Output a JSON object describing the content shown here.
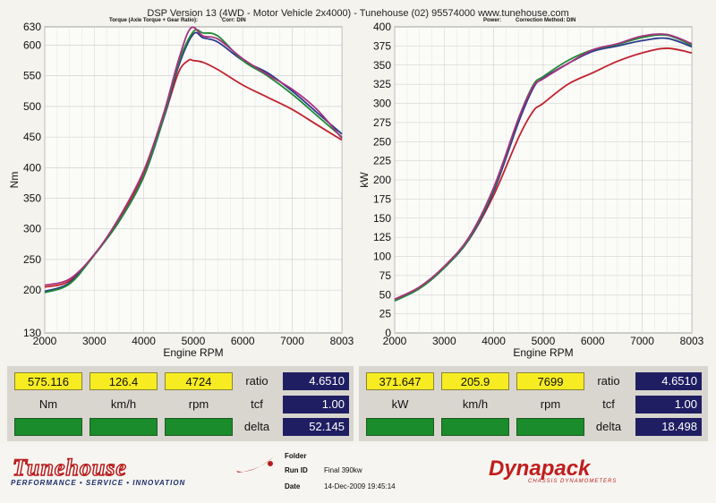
{
  "header": {
    "title": "DSP Version 13 (4WD - Motor Vehicle 2x4000) - Tunehouse (02) 95574000  www.tunehouse.com",
    "left_sub_1": "Torque (Axle Torque + Gear Ratio):",
    "left_sub_2": "Corr: DIN",
    "right_sub_1": "Power:",
    "right_sub_2": "Correction Method: DIN"
  },
  "chart_data": [
    {
      "type": "line",
      "xlabel": "Engine RPM",
      "ylabel": "Nm",
      "xlim": [
        2000,
        8003
      ],
      "ylim": [
        130,
        630
      ],
      "xticks": [
        "2000",
        "3000",
        "4000",
        "5000",
        "6000",
        "7000",
        "8003"
      ],
      "yticks": [
        "130",
        "200",
        "250",
        "300",
        "350",
        "400",
        "450",
        "500",
        "550",
        "600",
        "630"
      ],
      "grid": true,
      "series": [
        {
          "color": "#c0232d",
          "x": [
            2000,
            2500,
            3000,
            3500,
            4000,
            4400,
            4700,
            4900,
            5000,
            5200,
            5500,
            6000,
            6500,
            7000,
            7500,
            8003
          ],
          "y": [
            205,
            215,
            258,
            315,
            390,
            480,
            555,
            575,
            575,
            572,
            560,
            535,
            515,
            495,
            470,
            445
          ]
        },
        {
          "color": "#2a3a8c",
          "x": [
            2000,
            2500,
            3000,
            3500,
            4000,
            4400,
            4700,
            5000,
            5200,
            5500,
            6000,
            6500,
            7000,
            7500,
            8003
          ],
          "y": [
            198,
            212,
            258,
            312,
            385,
            480,
            565,
            618,
            612,
            605,
            575,
            555,
            525,
            490,
            455
          ]
        },
        {
          "color": "#1f8a35",
          "x": [
            2000,
            2500,
            3000,
            3500,
            4000,
            4400,
            4700,
            5000,
            5200,
            5500,
            6000,
            6500,
            7000,
            7500,
            8003
          ],
          "y": [
            196,
            210,
            257,
            312,
            386,
            482,
            570,
            622,
            620,
            615,
            575,
            550,
            520,
            485,
            450
          ]
        },
        {
          "color": "#a8327e",
          "x": [
            2000,
            2500,
            3000,
            3500,
            4000,
            4400,
            4700,
            4950,
            5200,
            5500,
            6000,
            6500,
            7000,
            7500,
            8003
          ],
          "y": [
            208,
            218,
            258,
            318,
            395,
            488,
            575,
            628,
            615,
            610,
            578,
            552,
            528,
            495,
            448
          ]
        }
      ]
    },
    {
      "type": "line",
      "xlabel": "Engine RPM",
      "ylabel": "kW",
      "xlim": [
        2000,
        8003
      ],
      "ylim": [
        0,
        400
      ],
      "xticks": [
        "2000",
        "3000",
        "4000",
        "5000",
        "6000",
        "7000",
        "8003"
      ],
      "yticks": [
        "0",
        "25",
        "50",
        "75",
        "100",
        "125",
        "150",
        "175",
        "200",
        "225",
        "250",
        "275",
        "300",
        "325",
        "350",
        "375",
        "400"
      ],
      "grid": true,
      "series": [
        {
          "color": "#c0232d",
          "x": [
            2000,
            2500,
            3000,
            3500,
            4000,
            4500,
            4800,
            5000,
            5500,
            6000,
            6500,
            7000,
            7500,
            8003
          ],
          "y": [
            44,
            60,
            86,
            122,
            180,
            255,
            290,
            300,
            325,
            340,
            355,
            366,
            372,
            366
          ]
        },
        {
          "color": "#2a3a8c",
          "x": [
            2000,
            2500,
            3000,
            3500,
            4000,
            4500,
            4800,
            5000,
            5500,
            6000,
            6500,
            7000,
            7500,
            8003
          ],
          "y": [
            42,
            58,
            85,
            122,
            185,
            275,
            320,
            333,
            352,
            368,
            375,
            382,
            385,
            374
          ]
        },
        {
          "color": "#1f8a35",
          "x": [
            2000,
            2500,
            3000,
            3500,
            4000,
            4500,
            4800,
            5000,
            5500,
            6000,
            6500,
            7000,
            7500,
            8003
          ],
          "y": [
            42,
            58,
            85,
            123,
            188,
            280,
            324,
            335,
            356,
            370,
            377,
            386,
            389,
            376
          ]
        },
        {
          "color": "#a8327e",
          "x": [
            2000,
            2500,
            3000,
            3500,
            4000,
            4500,
            4800,
            5000,
            5500,
            6000,
            6500,
            7000,
            7500,
            8003
          ],
          "y": [
            44,
            60,
            87,
            125,
            190,
            280,
            322,
            332,
            352,
            370,
            378,
            388,
            390,
            378
          ]
        }
      ]
    }
  ],
  "readouts": {
    "left": {
      "val1": "575.116",
      "val2": "126.4",
      "val3": "4724",
      "unit1": "Nm",
      "unit2": "km/h",
      "unit3": "rpm",
      "ratio_label": "ratio",
      "ratio": "4.6510",
      "tcf_label": "tcf",
      "tcf": "1.00",
      "delta_label": "delta",
      "delta": "52.145"
    },
    "right": {
      "val1": "371.647",
      "val2": "205.9",
      "val3": "7699",
      "unit1": "kW",
      "unit2": "km/h",
      "unit3": "rpm",
      "ratio_label": "ratio",
      "ratio": "4.6510",
      "tcf_label": "tcf",
      "tcf": "1.00",
      "delta_label": "delta",
      "delta": "18.498"
    }
  },
  "footer": {
    "brand_left": "Tunehouse",
    "tagline": "PERFORMANCE • SERVICE • INNOVATION",
    "folder_label": "Folder",
    "folder_value": "",
    "runid_label": "Run ID",
    "runid_value": "Final 390kw",
    "date_label": "Date",
    "date_value": "14-Dec-2009 19:45:14",
    "brand_right": "Dynapack",
    "brand_right_sub": "CHASSIS DYNAMOMETERS"
  }
}
